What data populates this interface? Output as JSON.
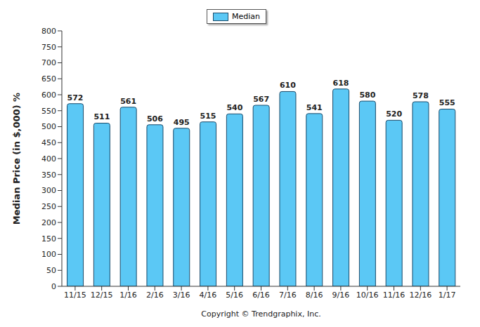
{
  "chart_data": {
    "type": "bar",
    "annotation": "Copyright © Trendgraphix, Inc.",
    "y_label": "Median Price (in $,000) %",
    "categories": [
      "11/15",
      "12/15",
      "1/16",
      "2/16",
      "3/16",
      "4/16",
      "5/16",
      "6/16",
      "7/16",
      "8/16",
      "9/16",
      "10/16",
      "11/16",
      "12/16",
      "1/17"
    ],
    "series": [
      {
        "name": "Median",
        "color": "#5bc8f5",
        "values": [
          572,
          511,
          561,
          506,
          495,
          515,
          540,
          567,
          610,
          541,
          618,
          580,
          520,
          578,
          555
        ]
      }
    ],
    "ylim": [
      0,
      800
    ],
    "yticks": [
      0,
      50,
      100,
      150,
      200,
      250,
      300,
      350,
      400,
      450,
      500,
      550,
      600,
      650,
      700,
      750,
      800
    ],
    "grid": false,
    "legend": "top",
    "data_labels": true
  }
}
